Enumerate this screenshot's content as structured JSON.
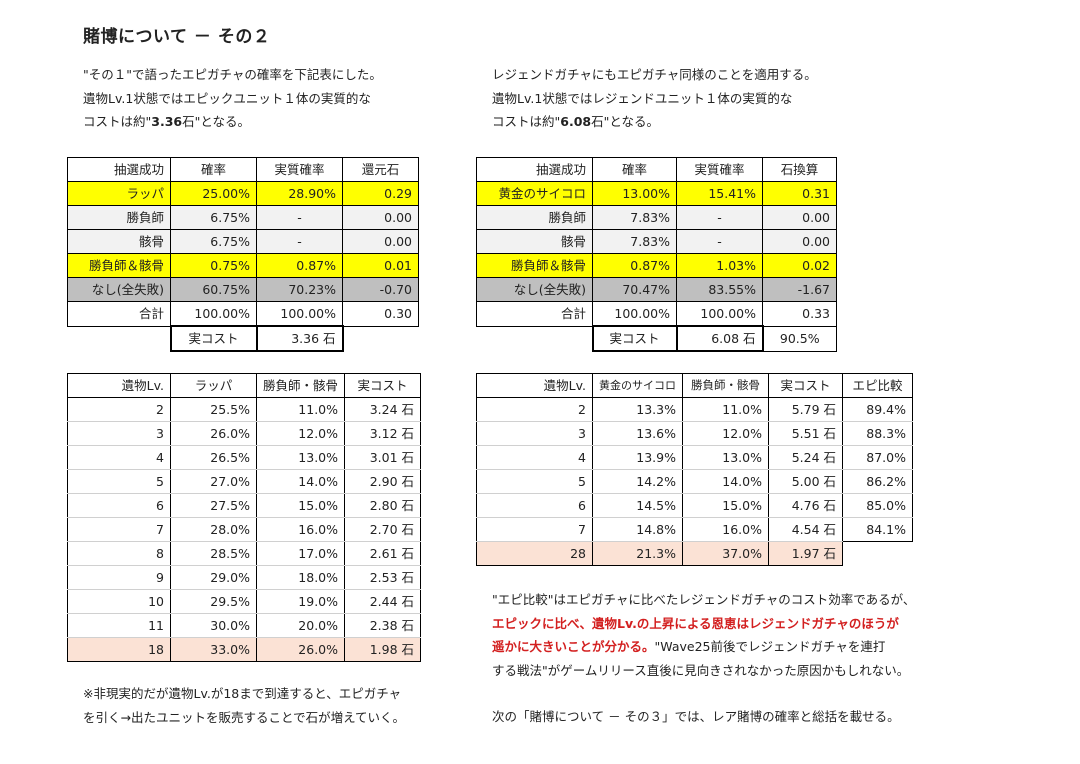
{
  "title": "賭博について － その２",
  "left_intro": {
    "line1": "\"その１\"で語ったエピガチャの確率を下記表にした。",
    "line2": "遺物Lv.1状態ではエピックユニット１体の実質的な",
    "line3_pre": "コストは約\"",
    "line3_bold": "3.36",
    "line3_post": "石\"となる。"
  },
  "right_intro": {
    "line1": "レジェンドガチャにもエピガチャ同様のことを適用する。",
    "line2": "遺物Lv.1状態ではレジェンドユニット１体の実質的な",
    "line3_pre": "コストは約\"",
    "line3_bold": "6.08",
    "line3_post": "石\"となる。"
  },
  "epic_table": {
    "headers": [
      "抽選成功",
      "確率",
      "実質確率",
      "還元石"
    ],
    "rows": [
      [
        "ラッパ",
        "25.00%",
        "28.90%",
        "0.29"
      ],
      [
        "勝負師",
        "6.75%",
        "-",
        "0.00"
      ],
      [
        "骸骨",
        "6.75%",
        "-",
        "0.00"
      ],
      [
        "勝負師＆骸骨",
        "0.75%",
        "0.87%",
        "0.01"
      ],
      [
        "なし(全失敗)",
        "60.75%",
        "70.23%",
        "-0.70"
      ],
      [
        "合計",
        "100.00%",
        "100.00%",
        "0.30"
      ]
    ],
    "cost_label": "実コスト",
    "cost_value": "3.36 石"
  },
  "legend_table": {
    "headers": [
      "抽選成功",
      "確率",
      "実質確率",
      "石換算"
    ],
    "rows": [
      [
        "黄金のサイコロ",
        "13.00%",
        "15.41%",
        "0.31"
      ],
      [
        "勝負師",
        "7.83%",
        "-",
        "0.00"
      ],
      [
        "骸骨",
        "7.83%",
        "-",
        "0.00"
      ],
      [
        "勝負師＆骸骨",
        "0.87%",
        "1.03%",
        "0.02"
      ],
      [
        "なし(全失敗)",
        "70.47%",
        "83.55%",
        "-1.67"
      ],
      [
        "合計",
        "100.00%",
        "100.00%",
        "0.33"
      ]
    ],
    "cost_label": "実コスト",
    "cost_value": "6.08 石",
    "ratio": "90.5%"
  },
  "epic_level_table": {
    "headers": [
      "遺物Lv.",
      "ラッパ",
      "勝負師・骸骨",
      "実コスト"
    ],
    "rows": [
      [
        "2",
        "25.5%",
        "11.0%",
        "3.24 石"
      ],
      [
        "3",
        "26.0%",
        "12.0%",
        "3.12 石"
      ],
      [
        "4",
        "26.5%",
        "13.0%",
        "3.01 石"
      ],
      [
        "5",
        "27.0%",
        "14.0%",
        "2.90 石"
      ],
      [
        "6",
        "27.5%",
        "15.0%",
        "2.80 石"
      ],
      [
        "7",
        "28.0%",
        "16.0%",
        "2.70 石"
      ],
      [
        "8",
        "28.5%",
        "17.0%",
        "2.61 石"
      ],
      [
        "9",
        "29.0%",
        "18.0%",
        "2.53 石"
      ],
      [
        "10",
        "29.5%",
        "19.0%",
        "2.44 石"
      ],
      [
        "11",
        "30.0%",
        "20.0%",
        "2.38 石"
      ],
      [
        "18",
        "33.0%",
        "26.0%",
        "1.98 石"
      ]
    ]
  },
  "legend_level_table": {
    "headers": [
      "遺物Lv.",
      "黄金のサイコロ",
      "勝負師・骸骨",
      "実コスト",
      "エピ比較"
    ],
    "rows": [
      [
        "2",
        "13.3%",
        "11.0%",
        "5.79 石",
        "89.4%"
      ],
      [
        "3",
        "13.6%",
        "12.0%",
        "5.51 石",
        "88.3%"
      ],
      [
        "4",
        "13.9%",
        "13.0%",
        "5.24 石",
        "87.0%"
      ],
      [
        "5",
        "14.2%",
        "14.0%",
        "5.00 石",
        "86.2%"
      ],
      [
        "6",
        "14.5%",
        "15.0%",
        "4.76 石",
        "85.0%"
      ],
      [
        "7",
        "14.8%",
        "16.0%",
        "4.54 石",
        "84.1%"
      ],
      [
        "28",
        "21.3%",
        "37.0%",
        "1.97 石",
        ""
      ]
    ]
  },
  "left_note": {
    "line1": "※非現実的だが遺物Lv.が18まで到達すると、エピガチャ",
    "line2": "を引く→出たユニットを販売することで石が増えていく。"
  },
  "right_note": {
    "line1": "\"エピ比較\"はエピガチャに比べたレジェンドガチャのコスト効率であるが、",
    "line2_red": "エピックに比べ、遺物Lv.の上昇による恩恵はレジェンドガチャのほうが",
    "line3_red": "遥かに大きいことが分かる。",
    "line3_post": "\"Wave25前後でレジェンドガチャを連打",
    "line4": "する戦法\"がゲームリリース直後に見向きされなかった原因かもしれない。",
    "line5": "次の「賭博について － その３」では、レア賭博の確率と総括を載せる。"
  }
}
